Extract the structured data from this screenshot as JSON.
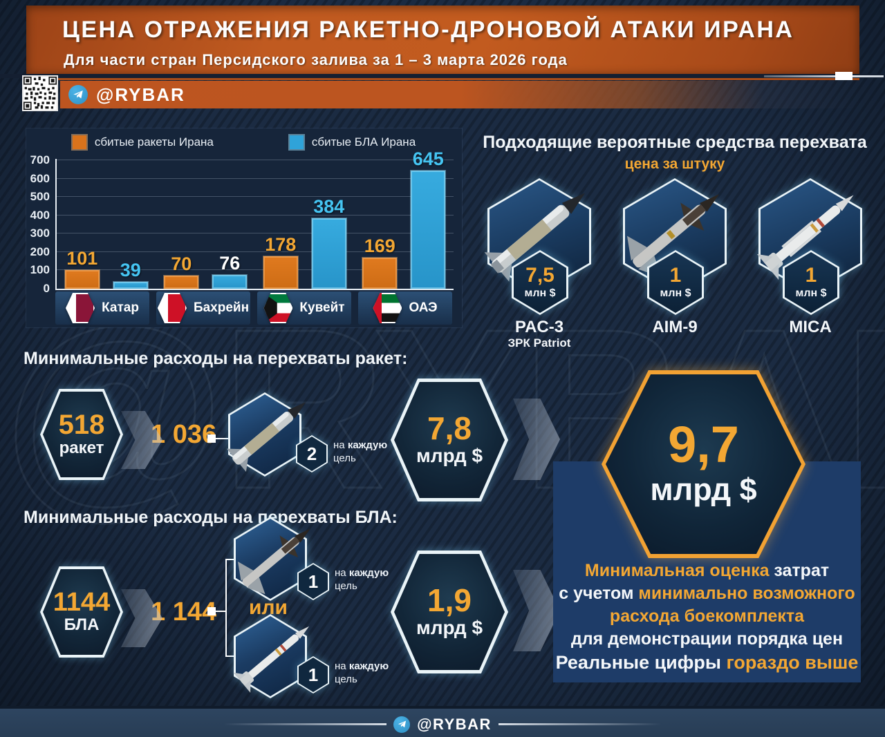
{
  "header": {
    "title": "ЦЕНА ОТРАЖЕНИЯ РАКЕТНО-ДРОНОВОЙ АТАКИ ИРАНА",
    "subtitle": "Для части стран Персидского залива за 1 – 3 марта 2026 года"
  },
  "brand": {
    "handle": "@RYBAR"
  },
  "watermark": {
    "text": "@RYBAR"
  },
  "chart_data": {
    "type": "bar",
    "categories": [
      "Катар",
      "Бахрейн",
      "Кувейт",
      "ОАЭ"
    ],
    "flags": [
      "qatar",
      "bahrain",
      "kuwait",
      "uae"
    ],
    "series": [
      {
        "name": "сбитые ракеты Ирана",
        "color": "#d9731c",
        "values": [
          101,
          70,
          178,
          169
        ],
        "value_label_colors": [
          "#f3a733",
          "#f3a733",
          "#f3a733",
          "#f3a733"
        ]
      },
      {
        "name": "сбитые БЛА Ирана",
        "color": "#2fa3d9",
        "values": [
          39,
          76,
          384,
          645
        ],
        "value_label_colors": [
          "#45c4f2",
          "#ffffff",
          "#45c4f2",
          "#45c4f2"
        ]
      }
    ],
    "ylim": [
      0,
      700
    ],
    "yticks": [
      0,
      100,
      200,
      300,
      400,
      500,
      600,
      700
    ],
    "grid": true,
    "legend_position": "top"
  },
  "interceptors": {
    "title": "Подходящие вероятные средства перехвата",
    "subtitle": "цена за штуку",
    "items": [
      {
        "name": "PAC-3",
        "sub": "ЗРК Patriot",
        "price": "7,5",
        "unit": "млн $"
      },
      {
        "name": "AIM-9",
        "sub": "",
        "price": "1",
        "unit": "млн $"
      },
      {
        "name": "MICA",
        "sub": "",
        "price": "1",
        "unit": "млн $"
      }
    ]
  },
  "sections": {
    "missiles": {
      "heading": "Минимальные расходы на перехваты ракет:",
      "source_value": "518",
      "source_label": "ракет",
      "total": "1 036",
      "per_count": "2",
      "per_pre": "на",
      "per_bold": "каждую",
      "per_rest": "цель",
      "cost_value": "7,8",
      "cost_unit": "млрд $"
    },
    "drones": {
      "heading": "Минимальные расходы на перехваты БЛА:",
      "source_value": "1144",
      "source_label": "БЛА",
      "total": "1 144",
      "or_label": "или",
      "per1_count": "1",
      "per2_count": "1",
      "per_pre": "на",
      "per_bold": "каждую",
      "per_rest": "цель",
      "cost_value": "1,9",
      "cost_unit": "млрд $"
    }
  },
  "summary": {
    "value": "9,7",
    "unit": "млрд $",
    "l1_orange": "Минимальная оценка",
    "l1_white": " затрат",
    "l2_white": "с учетом ",
    "l2_orange": "минимально возможного",
    "l3_orange": "расхода боекомплекта",
    "l4_white": "для демонстрации порядка цен",
    "foot_white": "Реальные цифры ",
    "foot_orange": "гораздо выше"
  }
}
